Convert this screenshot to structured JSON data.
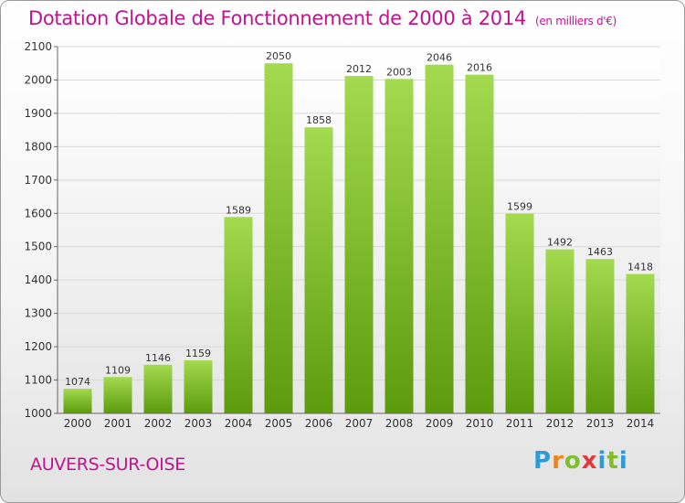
{
  "chart_data": {
    "type": "bar",
    "title": "Dotation Globale de Fonctionnement de 2000 à 2014",
    "unit_note": "(en milliers d'€)",
    "categories": [
      "2000",
      "2001",
      "2002",
      "2003",
      "2004",
      "2005",
      "2006",
      "2007",
      "2008",
      "2009",
      "2010",
      "2011",
      "2012",
      "2013",
      "2014"
    ],
    "values": [
      1074,
      1109,
      1146,
      1159,
      1589,
      2050,
      1858,
      2012,
      2003,
      2046,
      2016,
      1599,
      1492,
      1463,
      1418
    ],
    "ylim": [
      1000,
      2100
    ],
    "yticks": [
      1000,
      1100,
      1200,
      1300,
      1400,
      1500,
      1600,
      1700,
      1800,
      1900,
      2000,
      2100
    ],
    "grid": true,
    "xlabel": "",
    "ylabel": ""
  },
  "commune": "AUVERS-SUR-OISE",
  "logo": {
    "text": "Proxiti",
    "letters": [
      "P",
      "r",
      "o",
      "x",
      "i",
      "t",
      "i"
    ],
    "colors": [
      "#2e9bd6",
      "#e8871e",
      "#7fbf2a",
      "#e23a3a",
      "#2e9bd6",
      "#7fbf2a",
      "#2e9bd6"
    ]
  },
  "colors": {
    "bar_top": "#9fd84a",
    "bar_bottom": "#5e9c10",
    "title": "#c0148e"
  }
}
